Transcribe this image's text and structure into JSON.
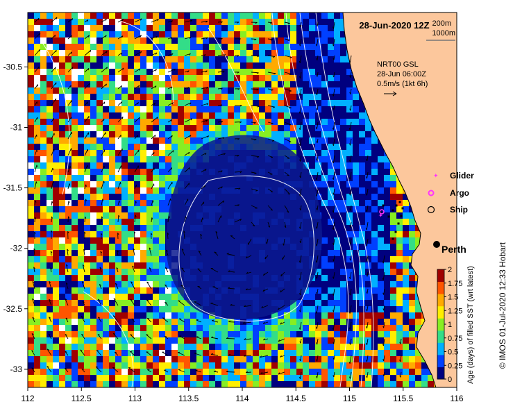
{
  "map": {
    "title": "28-Jun-2020 12Z",
    "x_ticks": [
      "112",
      "112.5",
      "113",
      "113.5",
      "114",
      "114.5",
      "115",
      "115.5",
      "116"
    ],
    "y_ticks": [
      "-30.5",
      "-31",
      "-31.5",
      "-32",
      "-32.5",
      "-33"
    ],
    "lon_range": [
      112,
      116
    ],
    "lat_range": [
      -33.15,
      -30.05
    ]
  },
  "contours_legend": {
    "label_200": "200m",
    "label_1000": "1000m"
  },
  "current_legend": {
    "line1": "NRT00 GSL",
    "line2": "28-Jun 06:00Z",
    "line3": "0.5m/s (1kt 6h)"
  },
  "platform_legend": {
    "glider": "Glider",
    "argo": "Argo",
    "ship": "Ship",
    "glider_color": "#ff33ff",
    "argo_color": "#ff33ff",
    "ship_color": "#000000"
  },
  "city": {
    "name": "Perth"
  },
  "colorbar": {
    "ticks": [
      "2",
      "1.75",
      "1.5",
      "1.25",
      "1",
      "0.75",
      "0.5",
      "0.25",
      "0"
    ],
    "label": "Age (days) of filled SST (wrt latest)",
    "range": [
      0,
      2
    ],
    "colors": [
      "#00007f",
      "#0040ff",
      "#00b0ff",
      "#33dd88",
      "#88ee22",
      "#ffee00",
      "#ffaa00",
      "#ff5500",
      "#a00000"
    ]
  },
  "credit": "© IMOS 01-Jul-2020 12:33 Hobart",
  "colors": {
    "land": "#fcc79c",
    "water_frame": "#ffffff"
  }
}
